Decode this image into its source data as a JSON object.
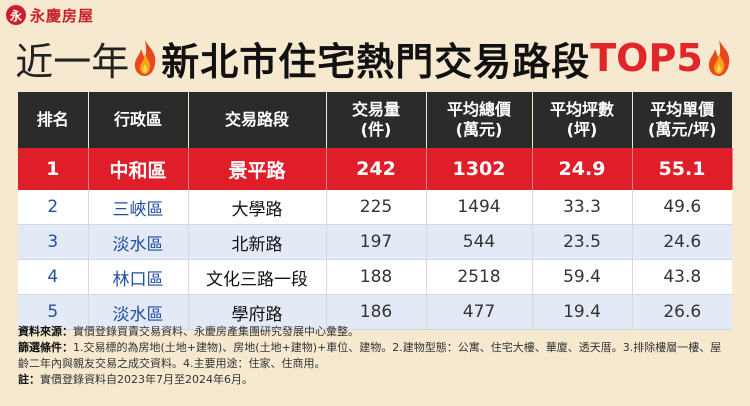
{
  "brand": {
    "mark": "永",
    "name": "永慶房屋"
  },
  "title": {
    "prefix": "近一年",
    "main": "新北市住宅熱門交易路段",
    "suffix": "TOP5"
  },
  "colors": {
    "accent": "#e01e2a",
    "header_bg": "#2b2b2b",
    "page_bg": "#f6e9d0",
    "link_blue": "#1f4fa0"
  },
  "icons": {
    "title_left": "flame-icon",
    "title_right": "flame-icon",
    "logo": "logo-mark-icon"
  },
  "table": {
    "headers": [
      {
        "line1": "排名",
        "line2": ""
      },
      {
        "line1": "行政區",
        "line2": ""
      },
      {
        "line1": "交易路段",
        "line2": ""
      },
      {
        "line1": "交易量",
        "line2": "(件)"
      },
      {
        "line1": "平均總價",
        "line2": "(萬元)"
      },
      {
        "line1": "平均坪數",
        "line2": "(坪)"
      },
      {
        "line1": "平均單價",
        "line2": "(萬元/坪)"
      }
    ],
    "rows": [
      {
        "rank": "1",
        "district": "中和區",
        "road": "景平路",
        "volume": "242",
        "avg_total": "1302",
        "avg_area": "24.9",
        "avg_unit": "55.1"
      },
      {
        "rank": "2",
        "district": "三峽區",
        "road": "大學路",
        "volume": "225",
        "avg_total": "1494",
        "avg_area": "33.3",
        "avg_unit": "49.6"
      },
      {
        "rank": "3",
        "district": "淡水區",
        "road": "北新路",
        "volume": "197",
        "avg_total": "544",
        "avg_area": "23.5",
        "avg_unit": "24.6"
      },
      {
        "rank": "4",
        "district": "林口區",
        "road": "文化三路一段",
        "volume": "188",
        "avg_total": "2518",
        "avg_area": "59.4",
        "avg_unit": "43.8"
      },
      {
        "rank": "5",
        "district": "淡水區",
        "road": "學府路",
        "volume": "186",
        "avg_total": "477",
        "avg_area": "19.4",
        "avg_unit": "26.6"
      }
    ]
  },
  "notes": {
    "source_label": "資料來源：",
    "source": "實價登錄買賣交易資料、永慶房產集團研究發展中心彙整。",
    "filter_label": "篩選條件：",
    "filter": "1.交易標的為房地(土地+建物)、房地(土地+建物)+車位、建物。2.建物型態：公寓、住宅大樓、華廈、透天厝。3.排除樓層一樓、屋齡二年內與親友交易之成交資料。4.主要用途：住家、住商用。",
    "note_label": "註：",
    "note": "實價登錄資料自2023年7月至2024年6月。"
  }
}
